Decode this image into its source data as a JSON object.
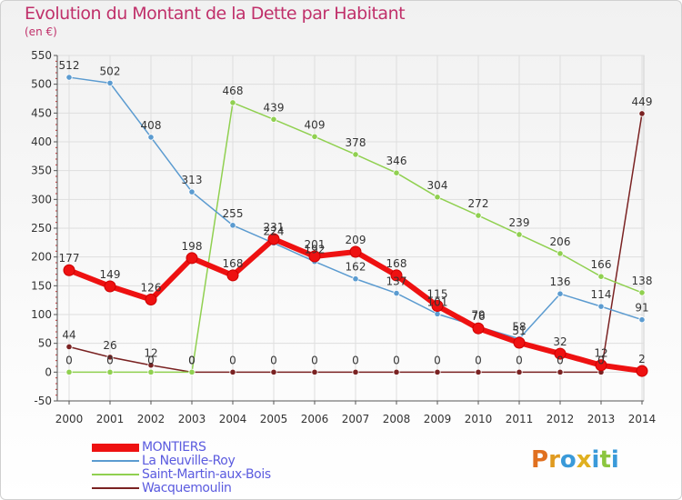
{
  "title": "Evolution du Montant de la Dette par Habitant",
  "subtitle": "(en €)",
  "logo": "Proxiti",
  "colors": {
    "title": "#c0306a",
    "legend_text": "#5b5bdf",
    "grid": "#dedede",
    "axis": "#555555"
  },
  "chart_data": {
    "type": "line",
    "x": [
      "2000",
      "2001",
      "2002",
      "2003",
      "2004",
      "2005",
      "2006",
      "2007",
      "2008",
      "2009",
      "2010",
      "2011",
      "2012",
      "2013",
      "2014"
    ],
    "ylim": [
      -50,
      550
    ],
    "yticks": [
      -50,
      0,
      50,
      100,
      150,
      200,
      250,
      300,
      350,
      400,
      450,
      500,
      550
    ],
    "grid": true,
    "legend_position": "bottom-left",
    "series": [
      {
        "name": "MONTIERS",
        "color": "#ee1111",
        "values": [
          177,
          149,
          126,
          198,
          168,
          231,
          201,
          209,
          168,
          115,
          76,
          51,
          32,
          12,
          2
        ],
        "labels": [
          "177",
          "149",
          "126",
          "198",
          "168",
          "231",
          "201",
          "209",
          "168",
          "",
          "",
          "",
          "32",
          "12",
          "2"
        ]
      },
      {
        "name": "La Neuville-Roy",
        "color": "#5b9bd0",
        "values": [
          512,
          502,
          408,
          313,
          255,
          224,
          192,
          162,
          137,
          101,
          79,
          58,
          136,
          114,
          91
        ],
        "labels": [
          "512",
          "502",
          "408",
          "313",
          "255",
          "224",
          "192",
          "162",
          "137",
          "101",
          "79",
          "58",
          "136",
          "114",
          "91"
        ]
      },
      {
        "name": "Saint-Martin-aux-Bois",
        "color": "#90d050",
        "values": [
          0,
          0,
          0,
          0,
          468,
          439,
          409,
          378,
          346,
          304,
          272,
          239,
          206,
          166,
          138
        ],
        "labels": [
          "",
          "",
          "",
          "",
          "468",
          "439",
          "409",
          "378",
          "346",
          "304",
          "272",
          "239",
          "206",
          "166",
          "138"
        ]
      },
      {
        "name": "Wacquemoulin",
        "color": "#7a2222",
        "values": [
          44,
          26,
          12,
          0,
          0,
          0,
          0,
          0,
          0,
          0,
          0,
          0,
          0,
          0,
          449
        ],
        "labels": [
          "44",
          "26",
          "12",
          "0",
          "0",
          "0",
          "0",
          "0",
          "0",
          "0",
          "0",
          "0",
          "0",
          "0",
          "449"
        ]
      }
    ],
    "extra_labels": [
      {
        "series": 0,
        "index": 9,
        "text": "115"
      },
      {
        "series": 0,
        "index": 10,
        "text": "76"
      },
      {
        "series": 0,
        "index": 11,
        "text": "51"
      },
      {
        "series": 2,
        "index": 0,
        "text": "0"
      },
      {
        "series": 2,
        "index": 1,
        "text": "0"
      },
      {
        "series": 2,
        "index": 2,
        "text": "0"
      },
      {
        "series": 2,
        "index": 3,
        "text": "0"
      }
    ]
  }
}
